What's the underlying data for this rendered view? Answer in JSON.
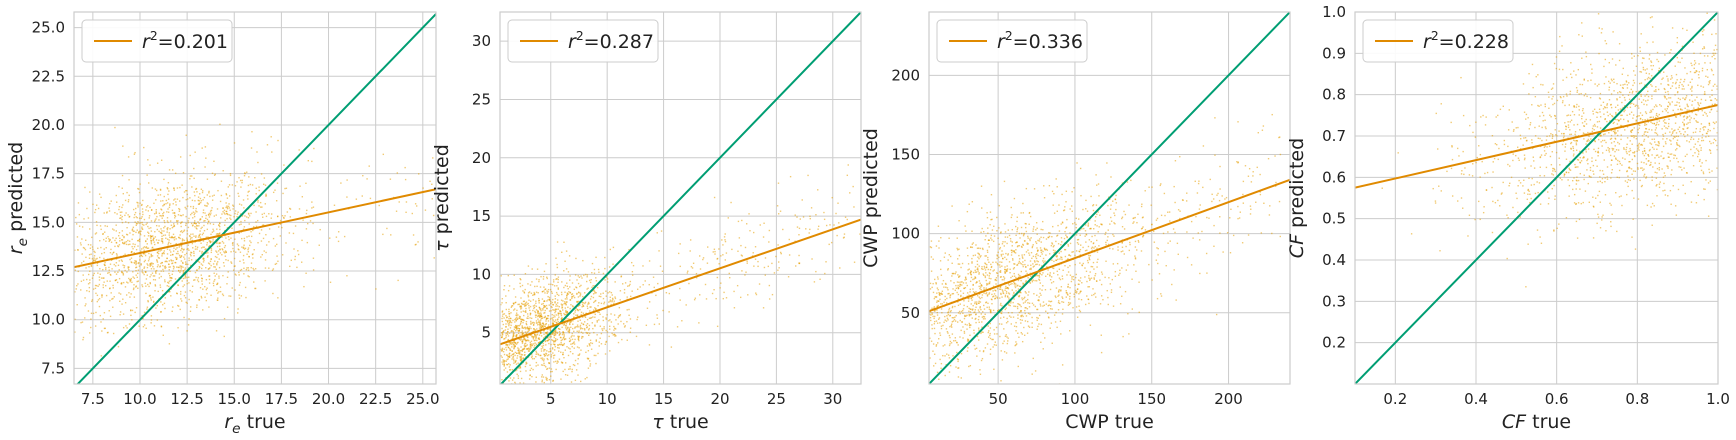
{
  "colors": {
    "scatter": "#E69F00",
    "fit_line": "#E08A00",
    "identity_line": "#009E73",
    "grid": "#cccccc",
    "frame": "#cccccc"
  },
  "chart_data": [
    {
      "type": "scatter",
      "xlabel": "r_e true",
      "ylabel": "r_e predicted",
      "xlim": [
        6.5,
        25.7
      ],
      "ylim": [
        6.7,
        25.8
      ],
      "xticks": [
        "7.5",
        "10.0",
        "12.5",
        "15.0",
        "17.5",
        "20.0",
        "22.5",
        "25.0"
      ],
      "xtick_values": [
        7.5,
        10,
        12.5,
        15,
        17.5,
        20,
        22.5,
        25
      ],
      "yticks": [
        "7.5",
        "10.0",
        "12.5",
        "15.0",
        "17.5",
        "20.0",
        "22.5",
        "25.0"
      ],
      "ytick_values": [
        7.5,
        10,
        12.5,
        15,
        17.5,
        20,
        22.5,
        25
      ],
      "grid": true,
      "legend": {
        "placement": "top-left",
        "label_prefix": "r",
        "label_sup": "2",
        "label_value": "=0.201"
      },
      "fit_line": {
        "x": [
          6.5,
          25.7
        ],
        "y": [
          12.7,
          16.7
        ]
      },
      "identity_line": {
        "x": [
          6.5,
          25.7
        ],
        "y": [
          6.5,
          25.7
        ]
      },
      "scatter_cloud": {
        "x_center": 11.5,
        "x_spread": 3.2,
        "y_center": 13.4,
        "y_spread": 1.8,
        "x_min": 6.5,
        "x_max": 25.7
      }
    },
    {
      "type": "scatter",
      "xlabel": "τ true",
      "ylabel": "τ predicted",
      "xlim": [
        0.5,
        32.5
      ],
      "ylim": [
        0.6,
        32.5
      ],
      "xticks": [
        "5",
        "10",
        "15",
        "20",
        "25",
        "30"
      ],
      "xtick_values": [
        5,
        10,
        15,
        20,
        25,
        30
      ],
      "yticks": [
        "5",
        "10",
        "15",
        "20",
        "25",
        "30"
      ],
      "ytick_values": [
        5,
        10,
        15,
        20,
        25,
        30
      ],
      "grid": true,
      "legend": {
        "placement": "top-left",
        "label_prefix": "r",
        "label_sup": "2",
        "label_value": "=0.287"
      },
      "fit_line": {
        "x": [
          0.5,
          32.5
        ],
        "y": [
          4.0,
          14.7
        ]
      },
      "identity_line": {
        "x": [
          0.5,
          32.5
        ],
        "y": [
          0.5,
          32.5
        ]
      },
      "scatter_cloud": {
        "x_center": 3.5,
        "x_spread": 3.5,
        "y_center": 5.5,
        "y_spread": 2.2,
        "x_min": 0.5,
        "x_max": 32.5
      }
    },
    {
      "type": "scatter",
      "xlabel": "CWP true",
      "ylabel": "CWP predicted",
      "xlim": [
        5,
        240
      ],
      "ylim": [
        5,
        240
      ],
      "xticks": [
        "50",
        "100",
        "150",
        "200"
      ],
      "xtick_values": [
        50,
        100,
        150,
        200
      ],
      "yticks": [
        "50",
        "100",
        "150",
        "200"
      ],
      "ytick_values": [
        50,
        100,
        150,
        200
      ],
      "grid": true,
      "legend": {
        "placement": "top-left",
        "label_prefix": "r",
        "label_sup": "2",
        "label_value": "=0.336"
      },
      "fit_line": {
        "x": [
          5,
          240
        ],
        "y": [
          51,
          134
        ]
      },
      "identity_line": {
        "x": [
          5,
          240
        ],
        "y": [
          5,
          240
        ]
      },
      "scatter_cloud": {
        "x_center": 45,
        "x_spread": 45,
        "y_center": 65,
        "y_spread": 22,
        "x_min": 5,
        "x_max": 240
      }
    },
    {
      "type": "scatter",
      "xlabel": "CF true",
      "ylabel": "CF predicted",
      "xlim": [
        0.1,
        1.0
      ],
      "ylim": [
        0.1,
        1.0
      ],
      "xticks": [
        "0.2",
        "0.4",
        "0.6",
        "0.8",
        "1.0"
      ],
      "xtick_values": [
        0.2,
        0.4,
        0.6,
        0.8,
        1.0
      ],
      "yticks": [
        "0.2",
        "0.3",
        "0.4",
        "0.5",
        "0.6",
        "0.7",
        "0.8",
        "0.9",
        "1.0"
      ],
      "ytick_values": [
        0.2,
        0.3,
        0.4,
        0.5,
        0.6,
        0.7,
        0.8,
        0.9,
        1.0
      ],
      "grid": true,
      "legend": {
        "placement": "top-left",
        "label_prefix": "r",
        "label_sup": "2",
        "label_value": "=0.228"
      },
      "fit_line": {
        "x": [
          0.1,
          1.0
        ],
        "y": [
          0.575,
          0.775
        ]
      },
      "identity_line": {
        "x": [
          0.1,
          1.0
        ],
        "y": [
          0.1,
          1.0
        ]
      },
      "scatter_cloud": {
        "x_center": 0.82,
        "x_spread": 0.2,
        "y_center": 0.72,
        "y_spread": 0.1,
        "x_min": 0.1,
        "x_max": 1.0
      }
    }
  ]
}
